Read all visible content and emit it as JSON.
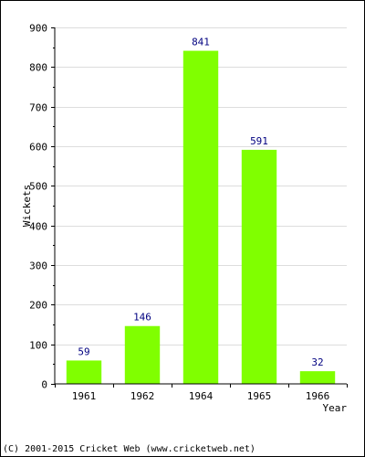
{
  "chart_data": {
    "type": "bar",
    "categories": [
      "1961",
      "1962",
      "1964",
      "1965",
      "1966"
    ],
    "values": [
      59,
      146,
      841,
      591,
      32
    ],
    "data_labels": [
      "59",
      "146",
      "841",
      "591",
      "32"
    ],
    "title": "",
    "xlabel": "Year",
    "ylabel": "Wickets",
    "ylim": [
      0,
      900
    ],
    "yticks": [
      0,
      100,
      200,
      300,
      400,
      500,
      600,
      700,
      800,
      900
    ],
    "grid": true,
    "bar_color": "#80ff00",
    "label_color": "#000080",
    "grid_color": "#dddddd"
  },
  "footer": "(C) 2001-2015 Cricket Web (www.cricketweb.net)"
}
